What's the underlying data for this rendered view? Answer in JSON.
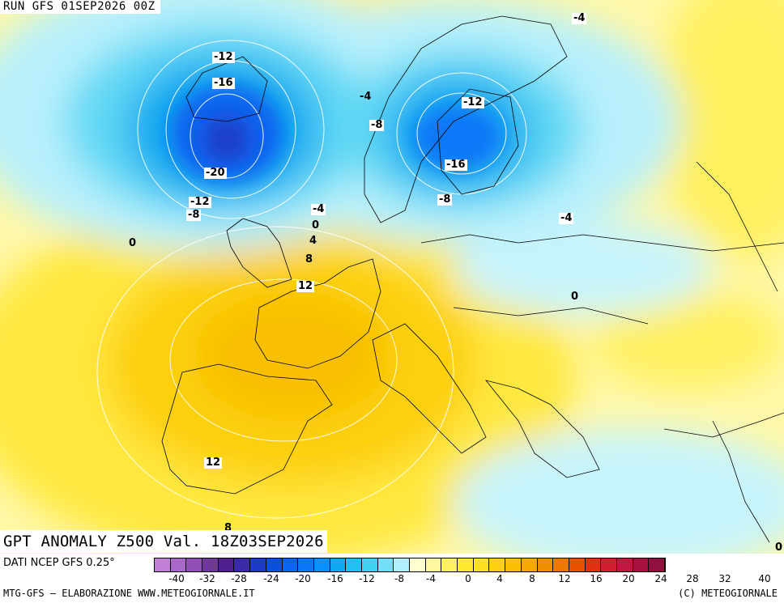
{
  "header": {
    "run_label": "RUN GFS 01SEP2026 00Z"
  },
  "map": {
    "title": "GPT ANOMALY Z500 Val. 18Z03SEP2026",
    "contour_labels": [
      {
        "text": "-4"
      },
      {
        "text": "-12"
      },
      {
        "text": "-16"
      },
      {
        "text": "-20"
      },
      {
        "text": "-12"
      },
      {
        "text": "-8"
      },
      {
        "text": "0"
      },
      {
        "text": "-4"
      },
      {
        "text": "-8"
      },
      {
        "text": "-12"
      },
      {
        "text": "-16"
      },
      {
        "text": "-8"
      },
      {
        "text": "-4"
      },
      {
        "text": "-4"
      },
      {
        "text": "0"
      },
      {
        "text": "4"
      },
      {
        "text": "8"
      },
      {
        "text": "12"
      },
      {
        "text": "0"
      },
      {
        "text": "12"
      },
      {
        "text": "8"
      },
      {
        "text": "0"
      }
    ]
  },
  "legend": {
    "source": "DATI NCEP GFS 0.25°",
    "colors": [
      "#c080d8",
      "#a868c8",
      "#9050b8",
      "#703898",
      "#502090",
      "#3a2aa8",
      "#1c3cc8",
      "#0a50e0",
      "#0a64f0",
      "#0a78f8",
      "#0a90f8",
      "#10a8f0",
      "#20c0f0",
      "#40d0f0",
      "#70e0f8",
      "#b0f0fc",
      "#ffffd0",
      "#fff8a0",
      "#fff060",
      "#ffe830",
      "#fde020",
      "#fdd010",
      "#f8c000",
      "#f4a800",
      "#f09000",
      "#ec7800",
      "#e85000",
      "#e03010",
      "#d02030",
      "#c01840",
      "#a81040",
      "#901040"
    ],
    "ticks": [
      "-40",
      "-32",
      "-28",
      "-24",
      "-20",
      "-16",
      "-12",
      "-8",
      "-4",
      "0",
      "4",
      "8",
      "12",
      "16",
      "20",
      "24",
      "28",
      "32",
      "40"
    ],
    "credit_left": "MTG-GFS — ELABORAZIONE WWW.METEOGIORNALE.IT",
    "credit_right": "(C) METEOGIORNALE"
  }
}
